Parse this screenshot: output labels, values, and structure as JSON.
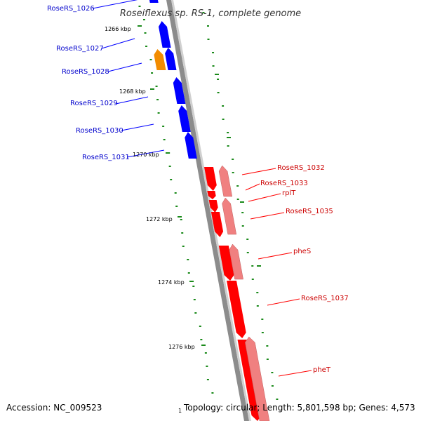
{
  "title": "Roseiflexus sp. RS-1, complete genome",
  "colors": {
    "forward_gene": "#0000ff",
    "forward_label": "#0000cc",
    "rna_gene": "#f28c00",
    "reverse_gene": "#ff0000",
    "reverse_gene_light": "#f08080",
    "reverse_label": "#cc0000",
    "backbone": "#8c8c8c",
    "gc_dots": "#1a8a1a"
  },
  "forward_genes": [
    {
      "label": "RoseRS_1026",
      "type": "CDS"
    },
    {
      "label": "RoseRS_1027",
      "type": "CDS"
    },
    {
      "label": "RoseRS_1028",
      "type": "RNA"
    },
    {
      "label": "RoseRS_1029",
      "type": "CDS"
    },
    {
      "label": "RoseRS_1030",
      "type": "CDS"
    },
    {
      "label": "RoseRS_1031",
      "type": "CDS"
    }
  ],
  "reverse_genes": [
    {
      "label": "RoseRS_1032"
    },
    {
      "label": "RoseRS_1033"
    },
    {
      "label": "rplT"
    },
    {
      "label": "RoseRS_1035"
    },
    {
      "label": "pheS"
    },
    {
      "label": "RoseRS_1037"
    },
    {
      "label": "pheT"
    }
  ],
  "ticks": [
    "1266 kbp",
    "1268 kbp",
    "1270 kbp",
    "1272 kbp",
    "1274 kbp",
    "1276 kbp"
  ],
  "origin_marker": "1",
  "footer": {
    "accession": "Accession: NC_009523",
    "summary": "Topology: circular; Length: 5,801,598 bp; Genes: 4,573"
  }
}
